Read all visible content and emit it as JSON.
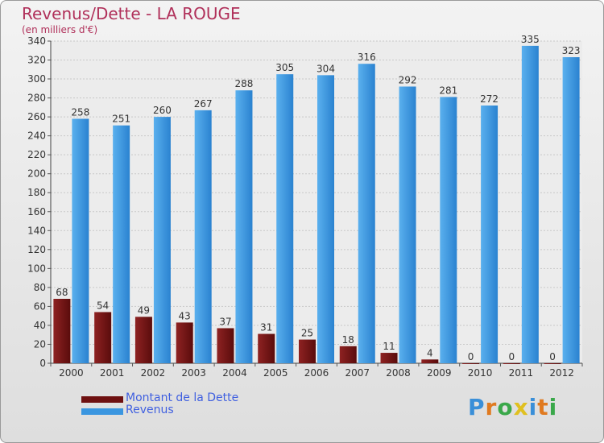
{
  "header": {
    "title": "Revenus/Dette - LA ROUGE",
    "subtitle": "(en milliers d'€)"
  },
  "chart_data": {
    "type": "bar",
    "categories": [
      "2000",
      "2001",
      "2002",
      "2003",
      "2004",
      "2005",
      "2006",
      "2007",
      "2008",
      "2009",
      "2010",
      "2011",
      "2012"
    ],
    "series": [
      {
        "name": "Montant de la Dette",
        "values": [
          68,
          54,
          49,
          43,
          37,
          31,
          25,
          18,
          11,
          4,
          0,
          0,
          0
        ],
        "color": "#7a1616"
      },
      {
        "name": "Revenus",
        "values": [
          258,
          251,
          260,
          267,
          288,
          305,
          304,
          316,
          292,
          281,
          272,
          335,
          323
        ],
        "color": "#3a96e0"
      }
    ],
    "ylim": [
      0,
      340
    ],
    "yticks": [
      0,
      20,
      40,
      60,
      80,
      100,
      120,
      140,
      160,
      180,
      200,
      220,
      240,
      260,
      280,
      300,
      320,
      340
    ],
    "grid": true,
    "legend_position": "bottom-left"
  },
  "legend": {
    "items": [
      {
        "label": "Montant de la Dette",
        "color": "#6e1010"
      },
      {
        "label": "Revenus",
        "color": "#3a96e0"
      }
    ]
  },
  "logo": {
    "text": "Proxiti",
    "letters": [
      {
        "ch": "P",
        "color": "#3a8fd8"
      },
      {
        "ch": "r",
        "color": "#e07a20"
      },
      {
        "ch": "o",
        "color": "#3aa84a"
      },
      {
        "ch": "x",
        "color": "#e0c020"
      },
      {
        "ch": "i",
        "color": "#3a8fd8"
      },
      {
        "ch": "t",
        "color": "#e07a20"
      },
      {
        "ch": "i",
        "color": "#3aa84a"
      }
    ]
  }
}
